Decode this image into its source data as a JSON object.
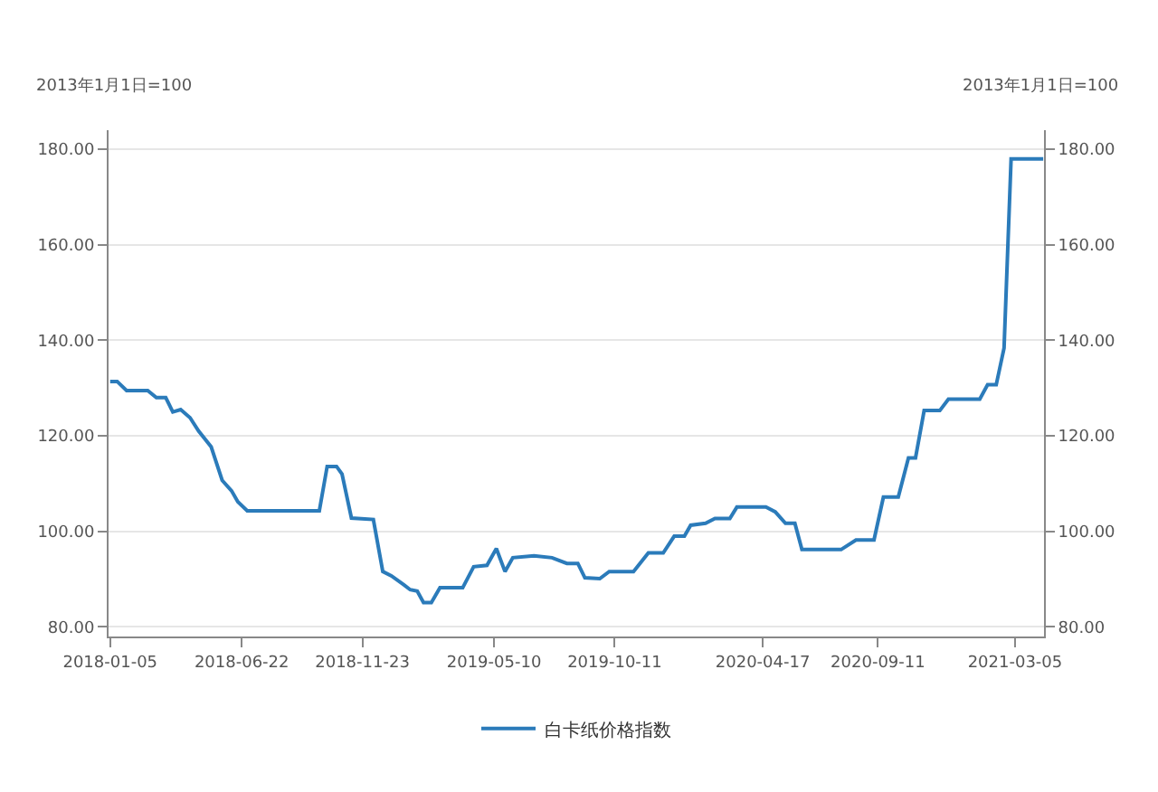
{
  "chart_data": {
    "type": "line",
    "ylabel": "2013年1月1日=100",
    "y2label": "2013年1月1日=100",
    "x": [
      "2018-01-05",
      "2018-01-14",
      "2018-01-26",
      "2018-02-22",
      "2018-03-05",
      "2018-03-17",
      "2018-03-26",
      "2018-04-05",
      "2018-04-17",
      "2018-04-28",
      "2018-05-14",
      "2018-05-28",
      "2018-06-09",
      "2018-06-17",
      "2018-06-29",
      "2018-09-29",
      "2018-10-09",
      "2018-10-21",
      "2018-10-28",
      "2018-11-09",
      "2018-12-07",
      "2018-12-19",
      "2018-12-30",
      "2019-01-15",
      "2019-01-23",
      "2019-02-01",
      "2019-02-09",
      "2019-02-19",
      "2019-03-02",
      "2019-03-31",
      "2019-04-14",
      "2019-05-01",
      "2019-05-13",
      "2019-05-24",
      "2019-06-03",
      "2019-06-30",
      "2019-07-23",
      "2019-08-11",
      "2019-08-25",
      "2019-09-03",
      "2019-09-22",
      "2019-10-04",
      "2019-11-04",
      "2019-11-23",
      "2019-12-12",
      "2019-12-26",
      "2020-01-08",
      "2020-01-16",
      "2020-02-04",
      "2020-02-16",
      "2020-03-06",
      "2020-03-15",
      "2020-04-21",
      "2020-05-03",
      "2020-05-16",
      "2020-05-28",
      "2020-06-06",
      "2020-07-26",
      "2020-08-14",
      "2020-09-06",
      "2020-09-18",
      "2020-10-07",
      "2020-10-20",
      "2020-10-29",
      "2020-11-09",
      "2020-11-29",
      "2020-12-10",
      "2021-01-19",
      "2021-01-29",
      "2021-02-09",
      "2021-02-19",
      "2021-02-28",
      "2021-04-10"
    ],
    "series": [
      {
        "name": "白卡纸价格指数",
        "color": "#2b7bba",
        "values": [
          131.4,
          131.4,
          129.5,
          129.5,
          128,
          128,
          125,
          125.5,
          123.8,
          121,
          117.7,
          110.7,
          108.5,
          106.2,
          104.3,
          104.3,
          113.6,
          113.6,
          112,
          102.8,
          102.5,
          91.6,
          90.7,
          88.8,
          87.8,
          87.5,
          85.1,
          85.1,
          88.2,
          88.2,
          92.6,
          92.9,
          96.4,
          91.6,
          94.5,
          94.9,
          94.5,
          93.3,
          93.3,
          90.3,
          90.1,
          91.6,
          91.6,
          95.5,
          95.5,
          99,
          99,
          101.3,
          101.7,
          102.7,
          102.7,
          105.1,
          105.1,
          104.1,
          101.7,
          101.7,
          96.2,
          96.2,
          98.2,
          98.2,
          107.2,
          107.2,
          115.4,
          115.4,
          125.3,
          125.3,
          127.7,
          127.7,
          130.7,
          130.7,
          138.4,
          178,
          178
        ]
      }
    ],
    "xlim": [
      "2018-01-03",
      "2021-04-11"
    ],
    "xticks": [
      "2018-01-05",
      "2018-06-22",
      "2018-11-23",
      "2019-05-10",
      "2019-10-11",
      "2020-04-17",
      "2020-09-11",
      "2021-03-05"
    ],
    "ylim": [
      78,
      184
    ],
    "yticks": [
      {
        "value": 80,
        "label": "80.00"
      },
      {
        "value": 100,
        "label": "100.00"
      },
      {
        "value": 120,
        "label": "120.00"
      },
      {
        "value": 140,
        "label": "140.00"
      },
      {
        "value": 160,
        "label": "160.00"
      },
      {
        "value": 180,
        "label": "180.00"
      }
    ],
    "y2lim": [
      78,
      184
    ],
    "y2ticks": [
      {
        "value": 80,
        "label": "80.00"
      },
      {
        "value": 100,
        "label": "100.00"
      },
      {
        "value": 120,
        "label": "120.00"
      },
      {
        "value": 140,
        "label": "140.00"
      },
      {
        "value": 160,
        "label": "160.00"
      },
      {
        "value": 180,
        "label": "180.00"
      }
    ],
    "grid": "y",
    "legend": "bottom",
    "marker": "none",
    "line_style": "solid"
  }
}
